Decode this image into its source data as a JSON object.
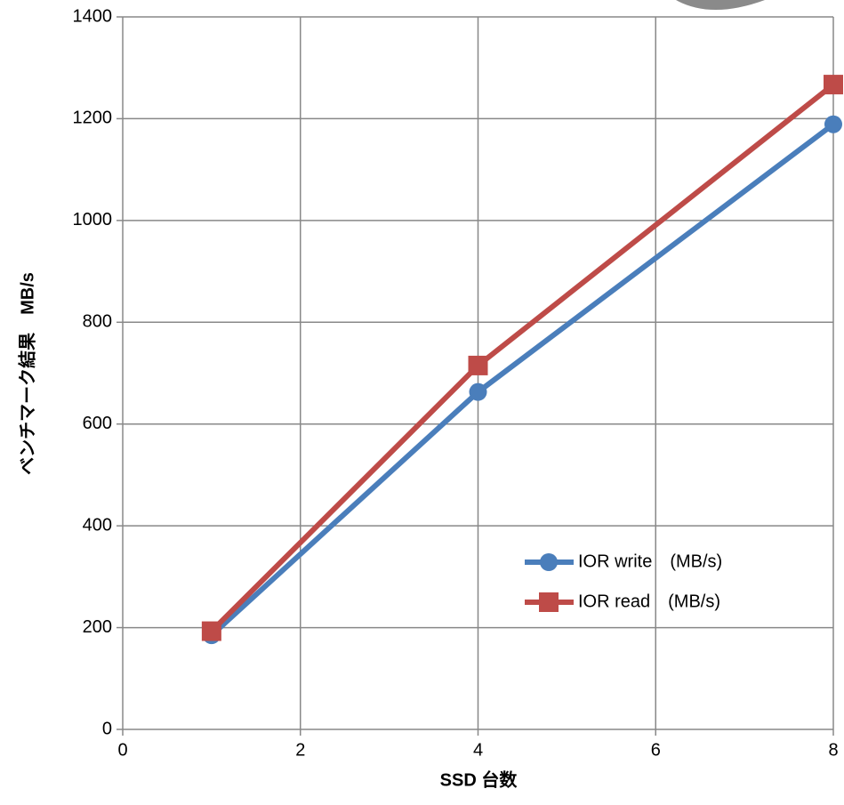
{
  "chart_data": {
    "type": "line",
    "x_label": "SSD 台数",
    "y_label": "ベンチマーク結果　MB/s",
    "x": [
      1,
      4,
      8
    ],
    "series": [
      {
        "name": "IOR write　(MB/s)",
        "color": "#4a7ebb",
        "marker": "circle",
        "values": [
          185,
          663,
          1189
        ]
      },
      {
        "name": "IOR read　(MB/s)",
        "color": "#be4b48",
        "marker": "square",
        "values": [
          193,
          715,
          1267
        ]
      }
    ],
    "xlim": [
      0,
      8
    ],
    "xticks": [
      0,
      2,
      4,
      6,
      8
    ],
    "ylim": [
      0,
      1400
    ],
    "yticks": [
      0,
      200,
      400,
      600,
      800,
      1000,
      1200,
      1400
    ],
    "grid": true,
    "legend": "lower right"
  }
}
